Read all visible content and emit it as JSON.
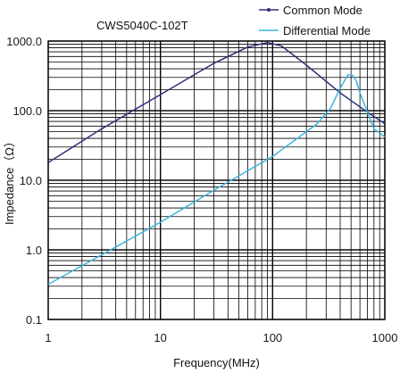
{
  "chart_data": {
    "type": "line",
    "title": "CWS5040C-102T",
    "xlabel": "Frequency(MHz)",
    "ylabel": "Impedance（Ω）",
    "x_scale": "log",
    "y_scale": "log",
    "xlim": [
      1,
      1000
    ],
    "ylim": [
      0.1,
      1000
    ],
    "x_ticks": [
      "1",
      "10",
      "100",
      "1000"
    ],
    "y_ticks": [
      "0.1",
      "1.0",
      "10.0",
      "100.0",
      "1000.0"
    ],
    "grid": true,
    "legend_position": "top-right",
    "series": [
      {
        "name": "Common Mode",
        "color": "#2e2e7a",
        "x": [
          1,
          3,
          10,
          30,
          60,
          90,
          120,
          200,
          400,
          700,
          1000
        ],
        "y": [
          18,
          55,
          170,
          480,
          820,
          950,
          850,
          450,
          180,
          95,
          65
        ]
      },
      {
        "name": "Differential Mode",
        "color": "#3cb5e0",
        "x": [
          1,
          3,
          10,
          30,
          100,
          250,
          330,
          400,
          470,
          520,
          560,
          600,
          700,
          800,
          1000
        ],
        "y": [
          0.32,
          0.85,
          2.5,
          7.2,
          22,
          65,
          110,
          210,
          330,
          320,
          260,
          180,
          95,
          55,
          42
        ]
      }
    ]
  }
}
